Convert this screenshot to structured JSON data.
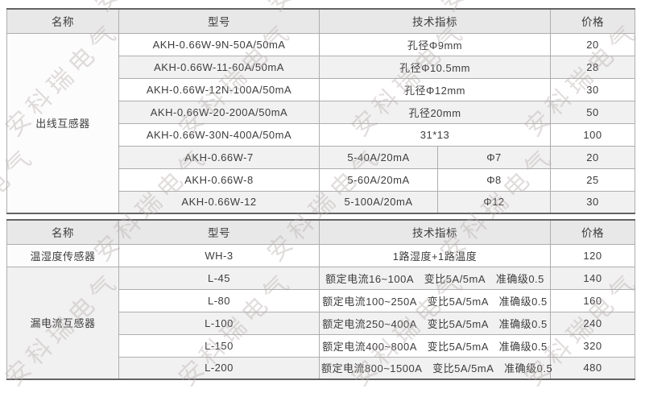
{
  "watermark": {
    "text": "安科瑞电气"
  },
  "colors": {
    "header_bg": "#e8e8e8",
    "stripe_bg": "#f1f1f1",
    "row_bg": "#ffffff",
    "inner_border": "#aeaeae",
    "outer_border": "#636363",
    "text": "#3d3d3d",
    "watermark": "#cbbfbf"
  },
  "t1": {
    "headers": {
      "name": "名称",
      "model": "型号",
      "tech": "技术指标",
      "price": "价格"
    },
    "group_name": "出线互感器",
    "rows": [
      {
        "model": "AKH-0.66W-9N-50A/50mA",
        "tech": "孔径Φ9mm",
        "price": "20"
      },
      {
        "model": "AKH-0.66W-11-60A/50mA",
        "tech": "孔径Φ10.5mm",
        "price": "28"
      },
      {
        "model": "AKH-0.66W-12N-100A/50mA",
        "tech": "孔径Φ12mm",
        "price": "30"
      },
      {
        "model": "AKH-0.66W-20-200A/50mA",
        "tech": "孔径20mm",
        "price": "50"
      },
      {
        "model": "AKH-0.66W-30N-400A/50mA",
        "tech": "31*13",
        "price": "100"
      },
      {
        "model": "AKH-0.66W-7",
        "tech": "5-40A/20mA",
        "tech2": "Φ7",
        "price": "20"
      },
      {
        "model": "AKH-0.66W-8",
        "tech": "5-60A/20mA",
        "tech2": "Φ8",
        "price": "25"
      },
      {
        "model": "AKH-0.66W-12",
        "tech": "5-100A/20mA",
        "tech2": "Φ12",
        "price": "30"
      }
    ]
  },
  "t2": {
    "headers": {
      "name": "名称",
      "model": "型号",
      "tech": "技术指标",
      "price": "价格"
    },
    "groups": [
      {
        "name": "温湿度传感器",
        "rows": [
          {
            "model": "WH-3",
            "tech": "1路湿度+1路温度",
            "price": "120"
          }
        ]
      },
      {
        "name": "漏电流互感器",
        "rows": [
          {
            "model": "L-45",
            "tech": "额定电流16~100A　变比5A/5mA　准确级0.5",
            "price": "140"
          },
          {
            "model": "L-80",
            "tech": "额定电流100~250A　变比5A/5mA　准确级0.5",
            "price": "160"
          },
          {
            "model": "L-100",
            "tech": "额定电流250~400A　变比5A/5mA　准确级0.5",
            "price": "240"
          },
          {
            "model": "L-150",
            "tech": "额定电流400~800A　变比5A/5mA　准确级0.5",
            "price": "320"
          },
          {
            "model": "L-200",
            "tech": "额定电流800~1500A　变比5A/5mA　准确级0.5",
            "price": "480"
          }
        ]
      }
    ]
  }
}
